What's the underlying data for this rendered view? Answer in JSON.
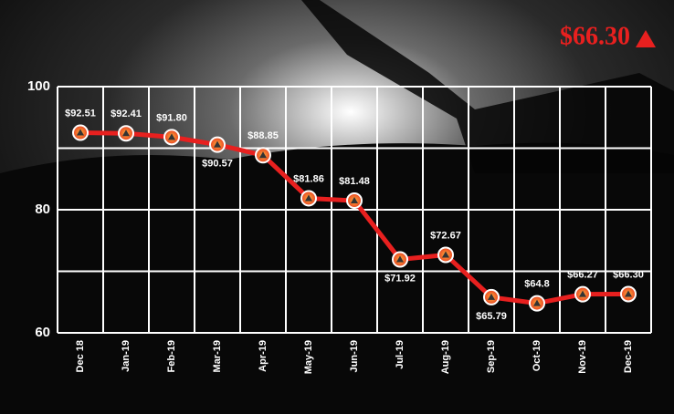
{
  "chart_data": {
    "type": "line",
    "headline": "$66.30",
    "categories": [
      "Dec 18",
      "Jan-19",
      "Feb-19",
      "Mar-19",
      "Apr-19",
      "May-19",
      "Jun-19",
      "Jul-19",
      "Aug-19",
      "Sep-19",
      "Oct-19",
      "Nov-19",
      "Dec-19"
    ],
    "series": [
      {
        "color": "#e8201f",
        "values": [
          92.51,
          92.41,
          91.8,
          90.57,
          88.85,
          81.86,
          81.48,
          71.92,
          72.67,
          65.79,
          64.8,
          66.27,
          66.3
        ],
        "value_labels": [
          "$92.51",
          "$92.41",
          "$91.80",
          "$90.57",
          "$88.85",
          "$81.86",
          "$81.48",
          "$71.92",
          "$72.67",
          "$65.79",
          "$64.8",
          "$66.27",
          "$66.30"
        ]
      }
    ],
    "ylim": [
      60,
      100
    ],
    "yticks": [
      60,
      80,
      100
    ],
    "minor_yticks": [
      70,
      90
    ],
    "grid": true
  }
}
